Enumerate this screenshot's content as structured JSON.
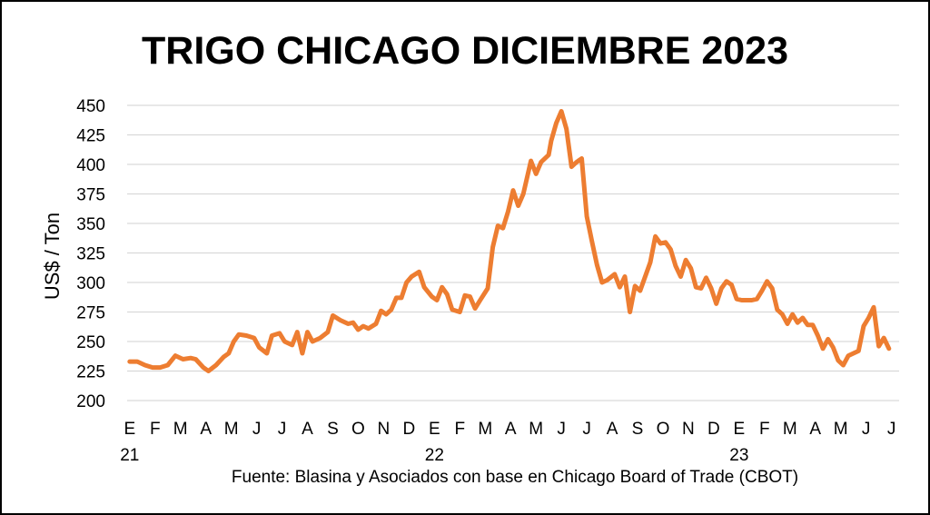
{
  "chart_data": {
    "type": "line",
    "title": "TRIGO CHICAGO DICIEMBRE 2023",
    "ylabel": "US$ / Ton",
    "xlabel": "",
    "source": "Fuente: Blasina y Asociados con base en Chicago Board of Trade (CBOT)",
    "ylim": [
      200,
      450
    ],
    "yticks": [
      200,
      225,
      250,
      275,
      300,
      325,
      350,
      375,
      400,
      425,
      450
    ],
    "grid": true,
    "legend": "none",
    "line_color": "#ED7D31",
    "month_ticks": [
      "E",
      "F",
      "M",
      "A",
      "M",
      "J",
      "J",
      "A",
      "S",
      "O",
      "N",
      "D",
      "E",
      "F",
      "M",
      "A",
      "M",
      "J",
      "J",
      "A",
      "S",
      "O",
      "N",
      "D",
      "E",
      "F",
      "M",
      "A",
      "M",
      "J",
      "J"
    ],
    "year_labels": [
      {
        "label": "21",
        "month_index": 0
      },
      {
        "label": "22",
        "month_index": 12
      },
      {
        "label": "23",
        "month_index": 24
      }
    ],
    "x_range": [
      -0.1,
      30.3
    ],
    "series": [
      {
        "points": [
          [
            0.0,
            233
          ],
          [
            0.3,
            233
          ],
          [
            0.6,
            230
          ],
          [
            0.9,
            228
          ],
          [
            1.2,
            228
          ],
          [
            1.5,
            230
          ],
          [
            1.8,
            238
          ],
          [
            2.1,
            235
          ],
          [
            2.4,
            236
          ],
          [
            2.6,
            235
          ],
          [
            2.9,
            228
          ],
          [
            3.1,
            225
          ],
          [
            3.4,
            230
          ],
          [
            3.7,
            237
          ],
          [
            3.9,
            240
          ],
          [
            4.1,
            250
          ],
          [
            4.3,
            256
          ],
          [
            4.6,
            255
          ],
          [
            4.9,
            253
          ],
          [
            5.1,
            245
          ],
          [
            5.4,
            240
          ],
          [
            5.6,
            255
          ],
          [
            5.9,
            257
          ],
          [
            6.1,
            250
          ],
          [
            6.4,
            247
          ],
          [
            6.6,
            258
          ],
          [
            6.8,
            240
          ],
          [
            7.0,
            258
          ],
          [
            7.2,
            250
          ],
          [
            7.5,
            253
          ],
          [
            7.8,
            258
          ],
          [
            8.0,
            272
          ],
          [
            8.3,
            268
          ],
          [
            8.6,
            265
          ],
          [
            8.8,
            266
          ],
          [
            9.0,
            260
          ],
          [
            9.2,
            263
          ],
          [
            9.4,
            261
          ],
          [
            9.7,
            265
          ],
          [
            9.9,
            276
          ],
          [
            10.1,
            273
          ],
          [
            10.3,
            277
          ],
          [
            10.5,
            287
          ],
          [
            10.7,
            287
          ],
          [
            10.9,
            300
          ],
          [
            11.1,
            305
          ],
          [
            11.4,
            309
          ],
          [
            11.6,
            296
          ],
          [
            11.9,
            288
          ],
          [
            12.1,
            285
          ],
          [
            12.3,
            296
          ],
          [
            12.5,
            290
          ],
          [
            12.7,
            277
          ],
          [
            13.0,
            275
          ],
          [
            13.2,
            289
          ],
          [
            13.4,
            288
          ],
          [
            13.6,
            278
          ],
          [
            13.8,
            285
          ],
          [
            14.1,
            295
          ],
          [
            14.3,
            330
          ],
          [
            14.5,
            348
          ],
          [
            14.7,
            346
          ],
          [
            14.9,
            360
          ],
          [
            15.1,
            378
          ],
          [
            15.3,
            365
          ],
          [
            15.5,
            375
          ],
          [
            15.8,
            403
          ],
          [
            16.0,
            392
          ],
          [
            16.2,
            402
          ],
          [
            16.5,
            408
          ],
          [
            16.6,
            420
          ],
          [
            16.8,
            435
          ],
          [
            17.0,
            445
          ],
          [
            17.2,
            430
          ],
          [
            17.4,
            398
          ],
          [
            17.6,
            402
          ],
          [
            17.8,
            405
          ],
          [
            18.0,
            356
          ],
          [
            18.2,
            335
          ],
          [
            18.4,
            315
          ],
          [
            18.6,
            300
          ],
          [
            18.8,
            302
          ],
          [
            19.1,
            307
          ],
          [
            19.3,
            296
          ],
          [
            19.5,
            305
          ],
          [
            19.7,
            275
          ],
          [
            19.9,
            297
          ],
          [
            20.1,
            293
          ],
          [
            20.3,
            305
          ],
          [
            20.5,
            317
          ],
          [
            20.7,
            339
          ],
          [
            20.9,
            333
          ],
          [
            21.1,
            334
          ],
          [
            21.3,
            328
          ],
          [
            21.5,
            314
          ],
          [
            21.7,
            305
          ],
          [
            21.9,
            319
          ],
          [
            22.1,
            312
          ],
          [
            22.3,
            296
          ],
          [
            22.5,
            295
          ],
          [
            22.7,
            304
          ],
          [
            22.9,
            295
          ],
          [
            23.1,
            282
          ],
          [
            23.3,
            295
          ],
          [
            23.5,
            301
          ],
          [
            23.7,
            298
          ],
          [
            23.9,
            286
          ],
          [
            24.1,
            285
          ],
          [
            24.3,
            285
          ],
          [
            24.5,
            285
          ],
          [
            24.7,
            286
          ],
          [
            24.9,
            293
          ],
          [
            25.1,
            301
          ],
          [
            25.3,
            295
          ],
          [
            25.5,
            277
          ],
          [
            25.7,
            273
          ],
          [
            25.9,
            265
          ],
          [
            26.1,
            273
          ],
          [
            26.3,
            266
          ],
          [
            26.5,
            270
          ],
          [
            26.7,
            264
          ],
          [
            26.9,
            264
          ],
          [
            27.1,
            255
          ],
          [
            27.3,
            244
          ],
          [
            27.5,
            252
          ],
          [
            27.7,
            245
          ],
          [
            27.9,
            234
          ],
          [
            28.1,
            230
          ],
          [
            28.3,
            238
          ],
          [
            28.5,
            240
          ],
          [
            28.7,
            242
          ],
          [
            28.9,
            263
          ],
          [
            29.1,
            270
          ],
          [
            29.3,
            279
          ],
          [
            29.5,
            246
          ],
          [
            29.7,
            253
          ],
          [
            29.9,
            244
          ]
        ]
      }
    ]
  }
}
